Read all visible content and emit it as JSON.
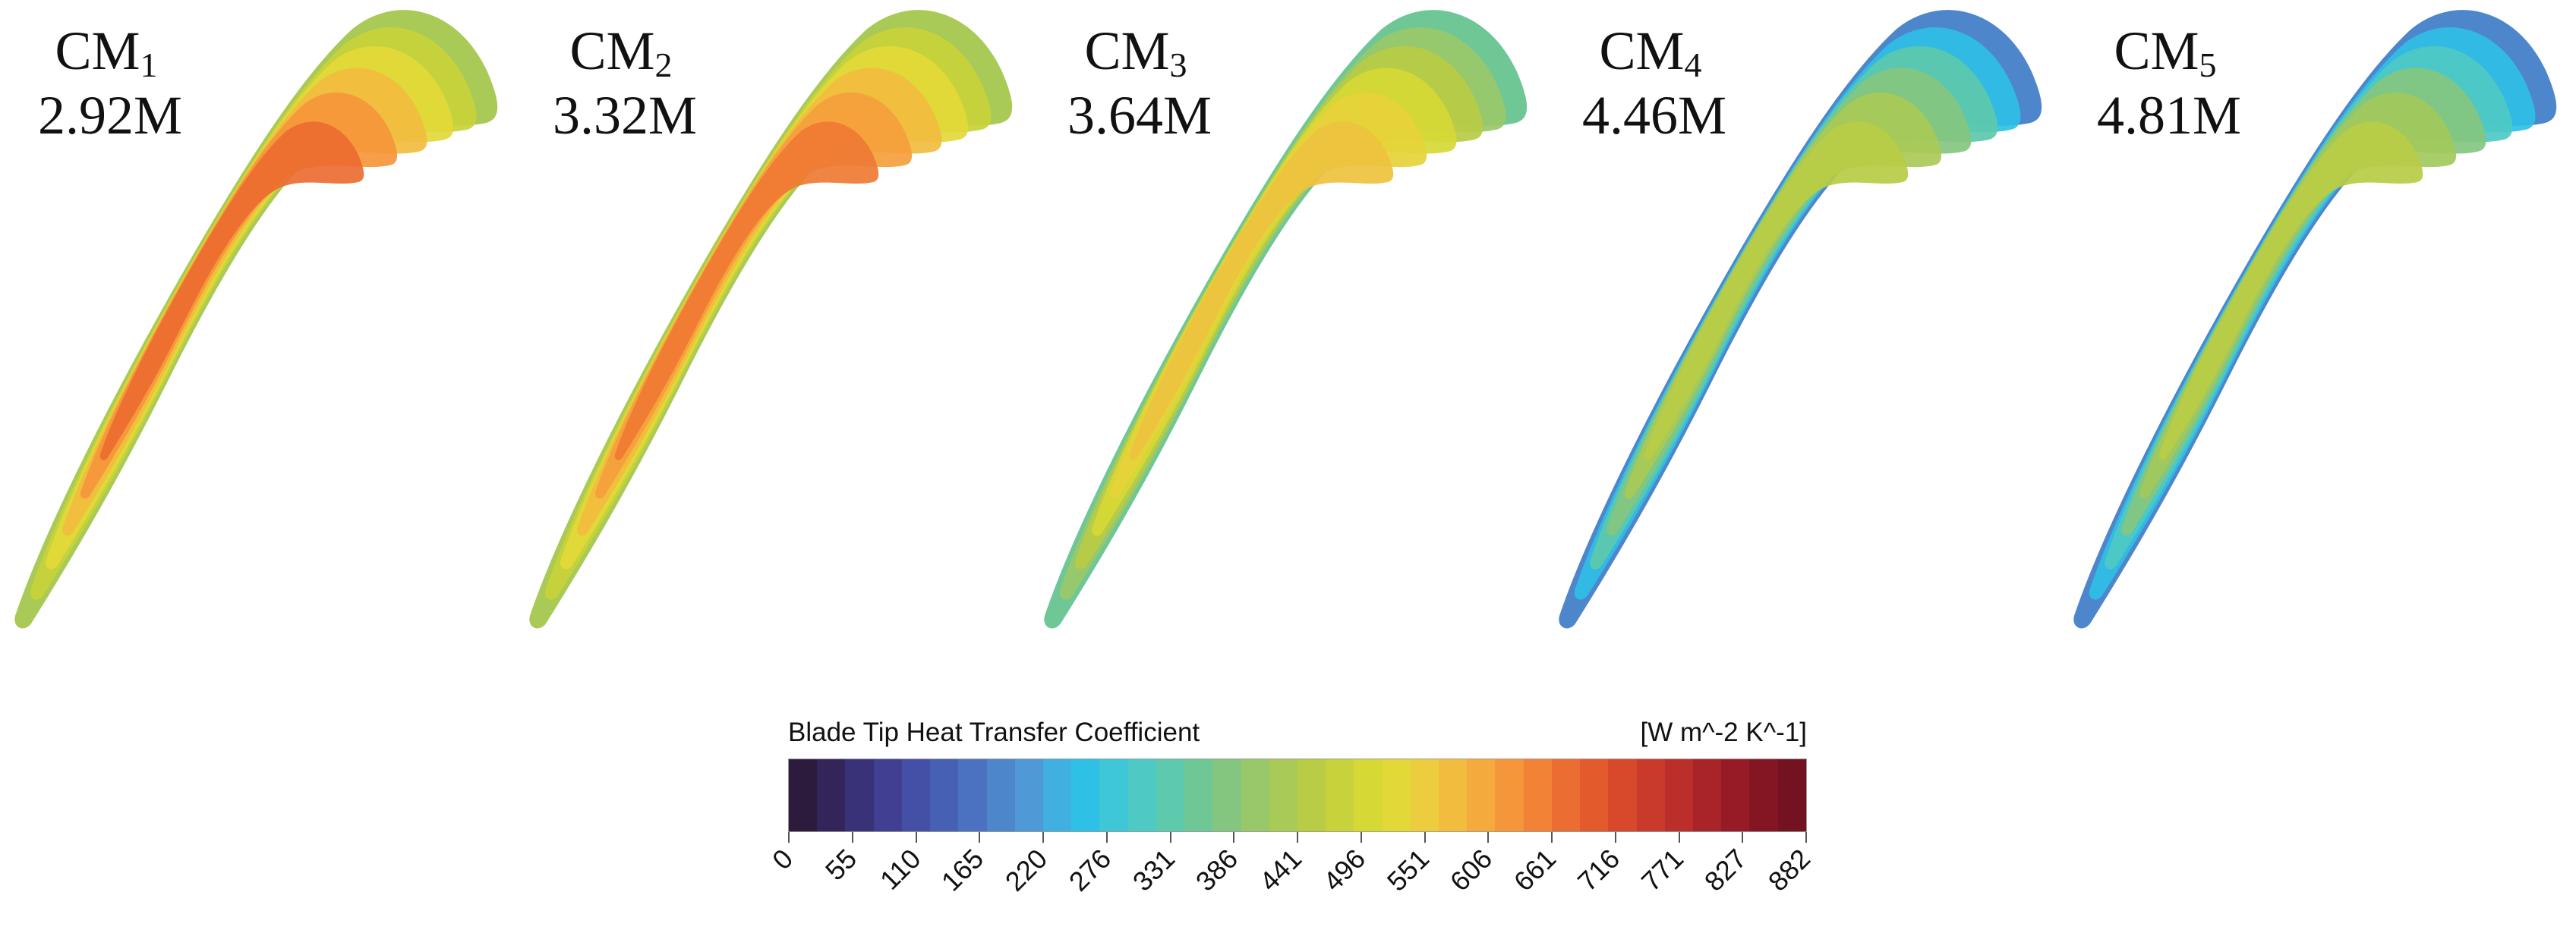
{
  "figure": {
    "cases": [
      {
        "name": "CM",
        "index": "1",
        "mesh": "2.92M",
        "palette": "warm"
      },
      {
        "name": "CM",
        "index": "2",
        "mesh": "3.32M",
        "palette": "warm2"
      },
      {
        "name": "CM",
        "index": "3",
        "mesh": "3.64M",
        "palette": "mid"
      },
      {
        "name": "CM",
        "index": "4",
        "mesh": "4.46M",
        "palette": "cool"
      },
      {
        "name": "CM",
        "index": "5",
        "mesh": "4.81M",
        "palette": "cool2"
      }
    ],
    "legend": {
      "title": "Blade Tip Heat Transfer Coefficient",
      "units": "[W m^-2 K^-1]",
      "ticks": [
        "0",
        "55",
        "110",
        "165",
        "220",
        "276",
        "331",
        "386",
        "441",
        "496",
        "551",
        "606",
        "661",
        "716",
        "771",
        "827",
        "882"
      ],
      "colors": [
        "#2d1b3d",
        "#33245a",
        "#3a3278",
        "#413f91",
        "#444fa6",
        "#4660b4",
        "#4a72c0",
        "#4e86cc",
        "#4f99d6",
        "#3fb0e0",
        "#2fc0e6",
        "#3ec7d6",
        "#4ec9c3",
        "#5dc9ad",
        "#6fc796",
        "#84c67f",
        "#99c86a",
        "#a9ca56",
        "#b8cc45",
        "#c8d23a",
        "#d6d935",
        "#e2d938",
        "#eccd3d",
        "#f2bc3f",
        "#f5aa3d",
        "#f5963a",
        "#f28236",
        "#ec6d31",
        "#e35a2d",
        "#d8482b",
        "#ca3a2a",
        "#bb2e29",
        "#a92428",
        "#961b26",
        "#841624",
        "#731321"
      ]
    }
  }
}
